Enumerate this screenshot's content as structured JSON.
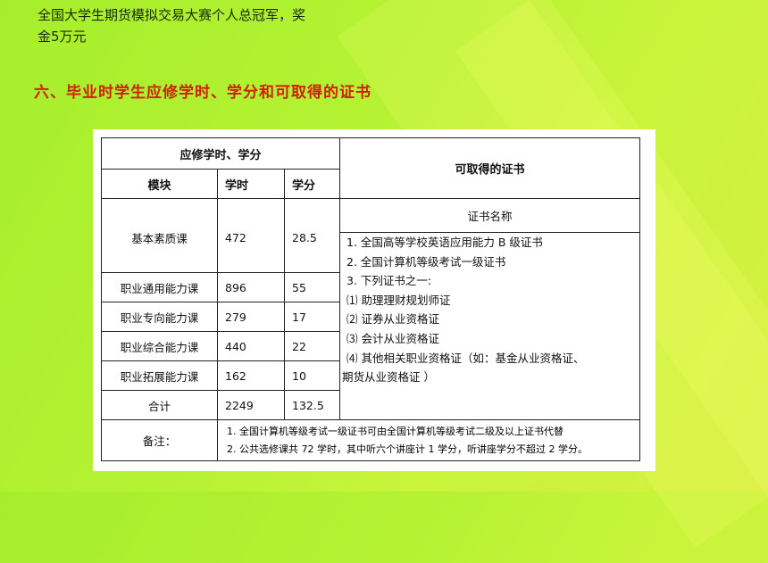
{
  "intro": {
    "line1": "全国大学生期货模拟交易大赛个人总冠军，奖",
    "line2": "金5万元"
  },
  "heading": "六、毕业时学生应修学时、学分和可取得的证书",
  "table": {
    "header_group": "应修学时、学分",
    "header_module": "模块",
    "header_hours": "学时",
    "header_credits": "学分",
    "header_certs": "可取得的证书",
    "cert_name_header": "证书名称",
    "rows": [
      {
        "module": "基本素质课",
        "hours": "472",
        "credits": "28.5"
      },
      {
        "module": "职业通用能力课",
        "hours": "896",
        "credits": "55"
      },
      {
        "module": "职业专向能力课",
        "hours": "279",
        "credits": "17"
      },
      {
        "module": "职业综合能力课",
        "hours": "440",
        "credits": "22"
      },
      {
        "module": "职业拓展能力课",
        "hours": "162",
        "credits": "10"
      }
    ],
    "total": {
      "label": "合计",
      "hours": "2249",
      "credits": "132.5"
    },
    "certs": [
      "1. 全国高等学校英语应用能力 B 级证书",
      "2. 全国计算机等级考试一级证书",
      "3. 下列证书之一:",
      "⑴ 助理理财规划师证",
      "⑵ 证券从业资格证",
      "⑶ 会计从业资格证",
      "⑷ 其他相关职业资格证（如：基金从业资格证、",
      "期货从业资格证 ）"
    ],
    "notes_label": "备注：",
    "notes": [
      "1.   全国计算机等级考试一级证书可由全国计算机等级考试二级及以上证书代替",
      "2.   公共选修课共 72 学时，其中听六个讲座计 1 学分，听讲座学分不超过 2 学分。"
    ]
  }
}
